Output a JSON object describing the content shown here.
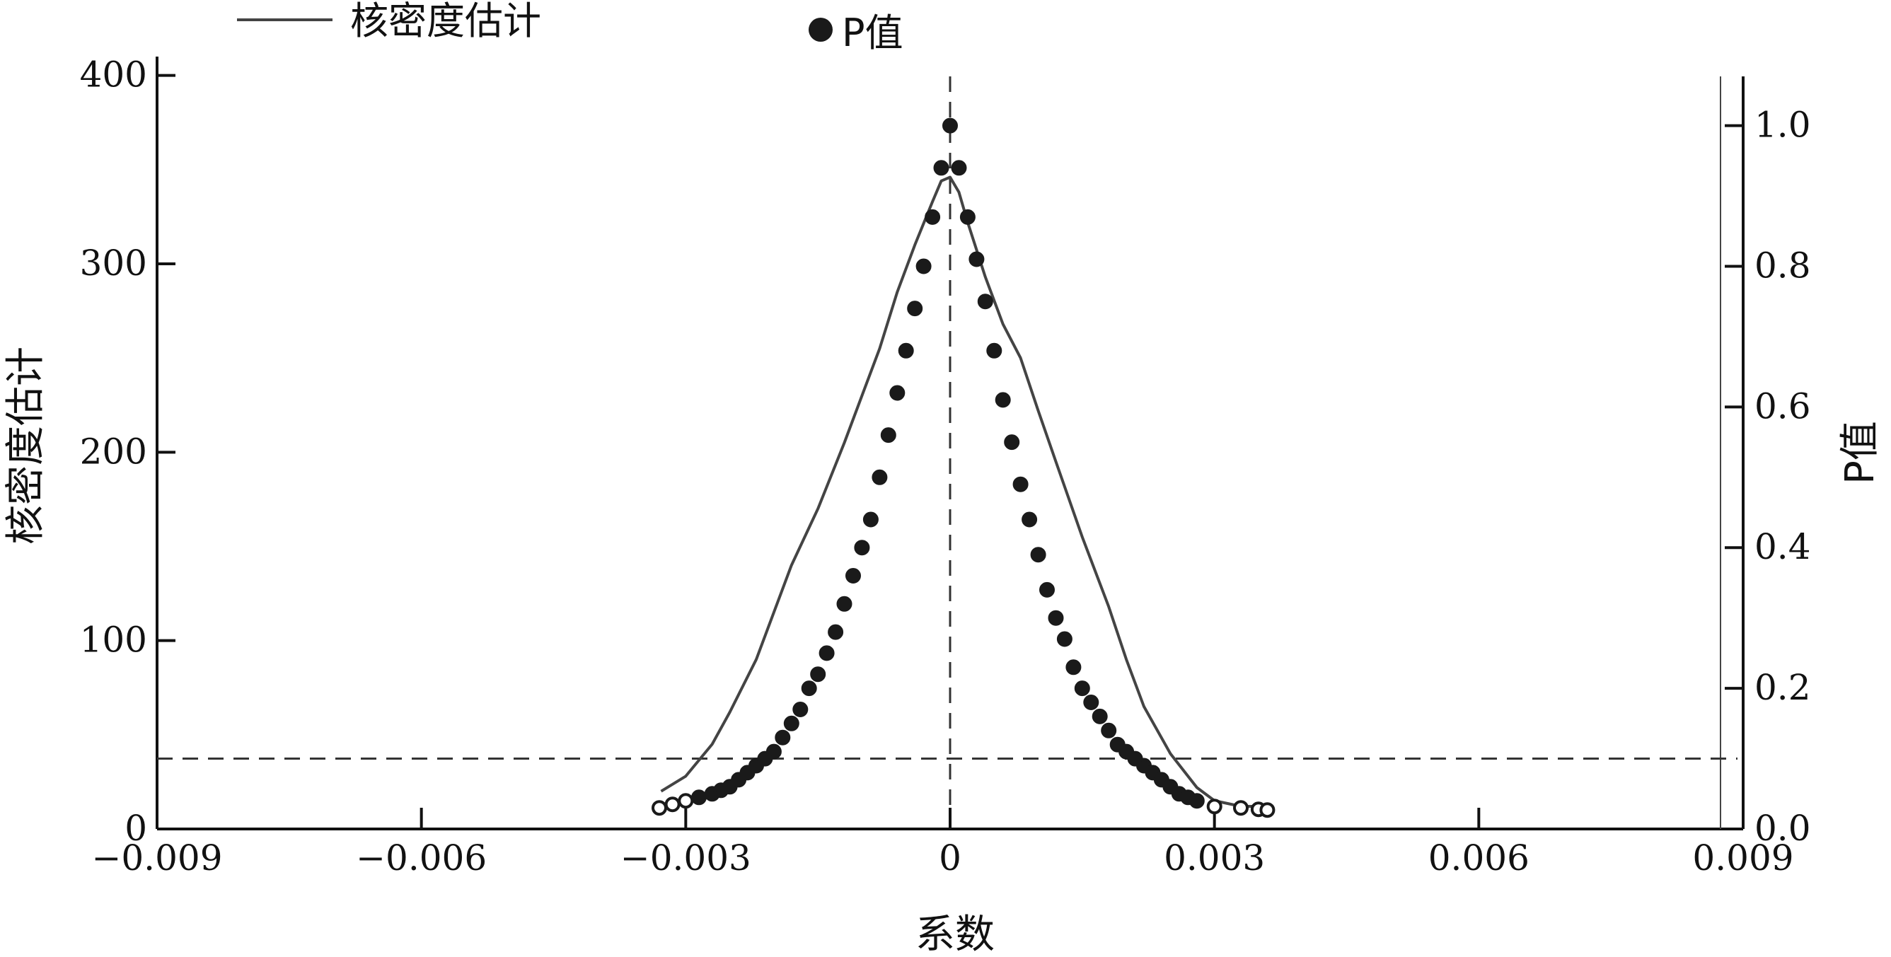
{
  "chart_data": {
    "type": "line",
    "xlabel": "系数",
    "ylabel": "核密度估计",
    "y2label": "P值",
    "xlim": [
      -0.009,
      0.009
    ],
    "ylim": [
      0,
      410
    ],
    "y2lim": [
      0,
      1.07
    ],
    "x_ticks": [
      -0.009,
      -0.006,
      -0.003,
      0,
      0.003,
      0.006,
      0.009
    ],
    "x_tick_labels": [
      "−0.009",
      "−0.006",
      "−0.003",
      "0",
      "0.003",
      "0.006",
      "0.009"
    ],
    "y_ticks": [
      0,
      100,
      200,
      300,
      400
    ],
    "y_tick_labels": [
      "0",
      "100",
      "200",
      "300",
      "400"
    ],
    "y2_ticks": [
      0,
      0.2,
      0.4,
      0.6,
      0.8,
      1.0
    ],
    "y2_tick_labels": [
      "0.0",
      "0.2",
      "0.4",
      "0.6",
      "0.8",
      "1.0"
    ],
    "reference_lines": {
      "x": 0,
      "y2": 0.1
    },
    "grid": false,
    "legend": {
      "position": "top",
      "entries": [
        {
          "label": "核密度估计",
          "marker": "line"
        },
        {
          "label": "P值",
          "marker": "filled-circle"
        }
      ]
    },
    "series": [
      {
        "name": "核密度估计",
        "axis": "left",
        "style": "line",
        "color": "#444444",
        "x": [
          -0.00328,
          -0.003,
          -0.0027,
          -0.0025,
          -0.0022,
          -0.002,
          -0.0018,
          -0.0015,
          -0.0012,
          -0.001,
          -0.0008,
          -0.0006,
          -0.0004,
          -0.0002,
          -0.0001,
          0,
          0.0001,
          0.0002,
          0.0004,
          0.0006,
          0.0008,
          0.001,
          0.0012,
          0.0015,
          0.0018,
          0.002,
          0.0022,
          0.0025,
          0.0028,
          0.003,
          0.0033,
          0.0036
        ],
        "values": [
          20,
          28,
          45,
          62,
          90,
          115,
          140,
          170,
          205,
          230,
          255,
          285,
          310,
          333,
          344,
          346,
          338,
          322,
          293,
          268,
          250,
          222,
          195,
          155,
          118,
          90,
          65,
          40,
          22,
          15,
          12,
          12
        ]
      },
      {
        "name": "P值",
        "axis": "right",
        "style": "scatter",
        "color": "#1a1a1a",
        "x": [
          -0.0033,
          -0.00315,
          -0.003,
          -0.00285,
          -0.0027,
          -0.0026,
          -0.0025,
          -0.0024,
          -0.0023,
          -0.0022,
          -0.0021,
          -0.002,
          -0.0019,
          -0.0018,
          -0.0017,
          -0.0016,
          -0.0015,
          -0.0014,
          -0.0013,
          -0.0012,
          -0.0011,
          -0.001,
          -0.0009,
          -0.0008,
          -0.0007,
          -0.0006,
          -0.0005,
          -0.0004,
          -0.0003,
          -0.0002,
          -0.0001,
          0,
          0.0001,
          0.0002,
          0.0003,
          0.0004,
          0.0005,
          0.0006,
          0.0007,
          0.0008,
          0.0009,
          0.001,
          0.0011,
          0.0012,
          0.0013,
          0.0014,
          0.0015,
          0.0016,
          0.0017,
          0.0018,
          0.0019,
          0.002,
          0.0021,
          0.0022,
          0.0023,
          0.0024,
          0.0025,
          0.0026,
          0.0027,
          0.0028,
          0.003,
          0.0033,
          0.0035,
          0.0036
        ],
        "values": [
          0.03,
          0.035,
          0.04,
          0.045,
          0.05,
          0.055,
          0.06,
          0.07,
          0.08,
          0.09,
          0.1,
          0.11,
          0.13,
          0.15,
          0.17,
          0.2,
          0.22,
          0.25,
          0.28,
          0.32,
          0.36,
          0.4,
          0.44,
          0.5,
          0.56,
          0.62,
          0.68,
          0.74,
          0.8,
          0.87,
          0.94,
          1.0,
          0.94,
          0.87,
          0.81,
          0.75,
          0.68,
          0.61,
          0.55,
          0.49,
          0.44,
          0.39,
          0.34,
          0.3,
          0.27,
          0.23,
          0.2,
          0.18,
          0.16,
          0.14,
          0.12,
          0.11,
          0.1,
          0.09,
          0.08,
          0.07,
          0.06,
          0.05,
          0.045,
          0.04,
          0.032,
          0.03,
          0.028,
          0.027
        ]
      }
    ]
  }
}
